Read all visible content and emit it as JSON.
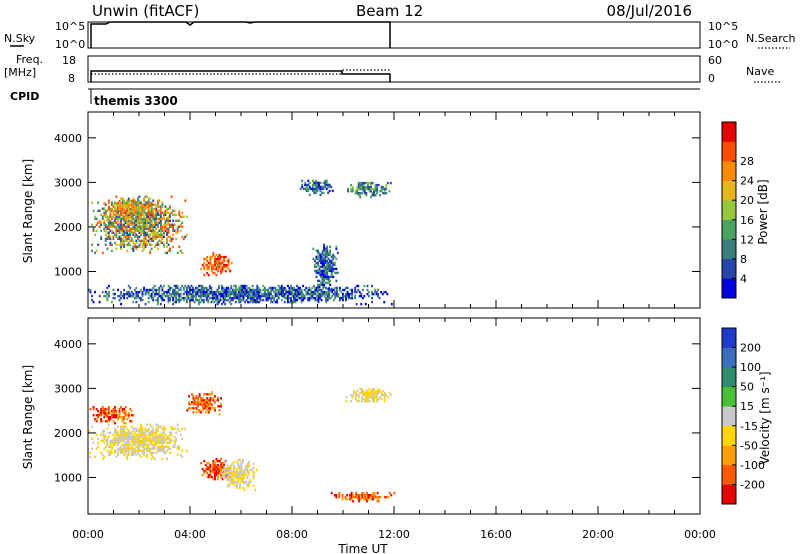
{
  "header": {
    "station": "Unwin (fitACF)",
    "beam": "Beam 12",
    "date": "08/Jul/2016"
  },
  "noise_panel": {
    "label": "N.Sky",
    "right_label": "N.Search",
    "ticks": [
      "10^5",
      "10^0"
    ],
    "right_ticks": [
      "10^5",
      "10^0"
    ]
  },
  "freq_panel": {
    "label_line1": "Freq.",
    "label_line2": "[MHz]",
    "right_label": "Nave",
    "ticks": [
      "18",
      "8"
    ],
    "right_ticks": [
      "60",
      "0"
    ]
  },
  "cpid_panel": {
    "label": "CPID",
    "program": "themis 3300"
  },
  "colors": {
    "frame": "#000000",
    "scatter_dotted": "#000000"
  },
  "chart_data": [
    {
      "type": "heatmap",
      "quantity": "power",
      "ylabel": "Slant Range [km]",
      "yticks": [
        "1000",
        "2000",
        "3000",
        "4000"
      ],
      "ylim": [
        180,
        4580
      ],
      "xlim": [
        "00:00",
        "24:00"
      ],
      "colorbar": {
        "label": "Power [dB]",
        "ticks": [
          "4",
          "8",
          "12",
          "16",
          "20",
          "24",
          "28"
        ],
        "colors": [
          "#0000e6",
          "#2646aa",
          "#3b7e7e",
          "#4aa35e",
          "#96c83c",
          "#e6b41e",
          "#ff8c00",
          "#ff4d00",
          "#e60000"
        ]
      },
      "regions": [
        {
          "t": [
            0.0,
            3.9
          ],
          "r": [
            1400,
            2700
          ],
          "level": "mixed"
        },
        {
          "t": [
            0.6,
            2.8
          ],
          "r": [
            2200,
            2600
          ],
          "level": "mid-high"
        },
        {
          "t": [
            4.4,
            5.7
          ],
          "r": [
            900,
            1400
          ],
          "level": "high"
        },
        {
          "t": [
            8.3,
            9.6
          ],
          "r": [
            2700,
            3050
          ],
          "level": "low"
        },
        {
          "t": [
            10.1,
            11.9
          ],
          "r": [
            2650,
            3000
          ],
          "level": "low-mid"
        },
        {
          "t": [
            0.0,
            12.0
          ],
          "r": [
            250,
            700
          ],
          "level": "low"
        },
        {
          "t": [
            8.8,
            9.8
          ],
          "r": [
            500,
            1600
          ],
          "level": "low"
        }
      ]
    },
    {
      "type": "heatmap",
      "quantity": "velocity",
      "ylabel": "Slant Range [km]",
      "yticks": [
        "1000",
        "2000",
        "3000",
        "4000"
      ],
      "ylim": [
        180,
        4580
      ],
      "xlim": [
        "00:00",
        "24:00"
      ],
      "xticks": [
        "00:00",
        "04:00",
        "08:00",
        "12:00",
        "16:00",
        "20:00",
        "00:00"
      ],
      "xlabel": "Time UT",
      "colorbar": {
        "label": "Velocity [m s⁻¹]",
        "ticks": [
          "200",
          "100",
          "50",
          "15",
          "-15",
          "-50",
          "-100",
          "-200"
        ],
        "colors": [
          "#1e3ccc",
          "#3c6ebe",
          "#2e8b6e",
          "#4cbf3a",
          "#c8c8c8",
          "#ffd700",
          "#ffa000",
          "#ff5a00",
          "#e60000"
        ]
      },
      "regions": [
        {
          "t": [
            0.0,
            1.8
          ],
          "r": [
            2200,
            2600
          ],
          "level": "towards-strong"
        },
        {
          "t": [
            0.0,
            3.9
          ],
          "r": [
            1400,
            2200
          ],
          "level": "near-zero"
        },
        {
          "t": [
            4.4,
            5.7
          ],
          "r": [
            900,
            1400
          ],
          "level": "towards-strong"
        },
        {
          "t": [
            5.2,
            6.6
          ],
          "r": [
            700,
            1400
          ],
          "level": "near-zero"
        },
        {
          "t": [
            9.4,
            12.0
          ],
          "r": [
            450,
            650
          ],
          "level": "towards-strong"
        },
        {
          "t": [
            10.1,
            11.9
          ],
          "r": [
            2650,
            3000
          ],
          "level": "near-zero"
        },
        {
          "t": [
            3.8,
            5.2
          ],
          "r": [
            2400,
            2900
          ],
          "level": "towards-strong"
        }
      ]
    }
  ]
}
